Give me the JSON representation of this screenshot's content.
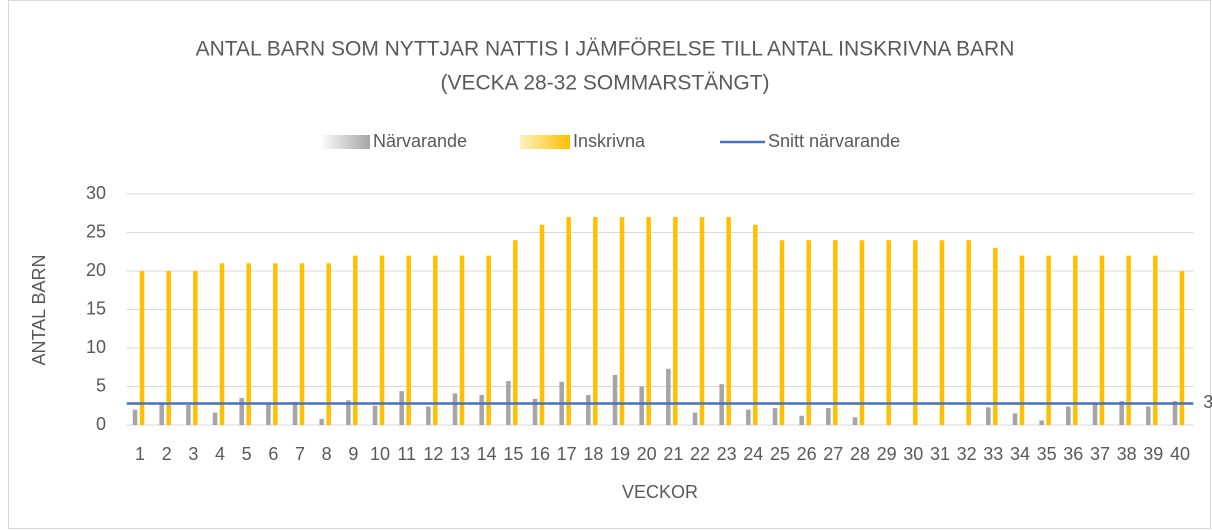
{
  "chart_data": {
    "type": "bar",
    "title": "ANTAL BARN SOM NYTTJAR NATTIS I JÄMFÖRELSE TILL ANTAL INSKRIVNA BARN",
    "subtitle": "(VECKA 28-32 SOMMARSTÄNGT)",
    "x_label": "VECKOR",
    "y_label": "ANTAL BARN",
    "categories": [
      "1",
      "2",
      "3",
      "4",
      "5",
      "6",
      "7",
      "8",
      "9",
      "10",
      "11",
      "12",
      "13",
      "14",
      "15",
      "16",
      "17",
      "18",
      "19",
      "20",
      "21",
      "22",
      "23",
      "24",
      "25",
      "26",
      "27",
      "28",
      "29",
      "30",
      "31",
      "32",
      "33",
      "34",
      "35",
      "36",
      "37",
      "38",
      "39",
      "40"
    ],
    "series": [
      {
        "name": "Närvarande",
        "color": "#a5a5a5",
        "type": "bar",
        "values": [
          2,
          2.7,
          2.6,
          1.6,
          3.5,
          2.7,
          3,
          0.8,
          3.2,
          2.5,
          4.4,
          2.4,
          4.1,
          3.9,
          5.7,
          3.4,
          5.6,
          3.9,
          6.5,
          5,
          7.3,
          1.6,
          5.3,
          2,
          2.2,
          1.2,
          2.2,
          1,
          0,
          0,
          0,
          0,
          2.3,
          1.5,
          0.6,
          2.4,
          2.7,
          3.1,
          2.4,
          3.1
        ]
      },
      {
        "name": "Inskrivna",
        "color": "#ffc000",
        "type": "bar",
        "values": [
          20,
          20,
          20,
          21,
          21,
          21,
          21,
          21,
          22,
          22,
          22,
          22,
          22,
          22,
          24,
          26,
          27,
          27,
          27,
          27,
          27,
          27,
          27,
          26,
          24,
          24,
          24,
          24,
          24,
          24,
          24,
          24,
          23,
          22,
          22,
          22,
          22,
          22,
          22,
          20
        ]
      },
      {
        "name": "Snitt närvarande",
        "color": "#4472c4",
        "type": "line",
        "values": [
          2.8,
          2.8,
          2.8,
          2.8,
          2.8,
          2.8,
          2.8,
          2.8,
          2.8,
          2.8,
          2.8,
          2.8,
          2.8,
          2.8,
          2.8,
          2.8,
          2.8,
          2.8,
          2.8,
          2.8,
          2.8,
          2.8,
          2.8,
          2.8,
          2.8,
          2.8,
          2.8,
          2.8,
          2.8,
          2.8,
          2.8,
          2.8,
          2.8,
          2.8,
          2.8,
          2.8,
          2.8,
          2.8,
          2.8,
          2.8
        ],
        "value_labels": [
          null,
          null,
          null,
          null,
          null,
          null,
          null,
          null,
          null,
          null,
          null,
          null,
          null,
          null,
          null,
          null,
          null,
          null,
          null,
          null,
          null,
          null,
          null,
          null,
          null,
          null,
          null,
          null,
          null,
          null,
          null,
          null,
          null,
          null,
          null,
          null,
          null,
          null,
          null,
          "3"
        ]
      }
    ],
    "ylim": [
      0,
      30
    ],
    "yticks": [
      0,
      5,
      10,
      15,
      20,
      25,
      30
    ],
    "grid": true,
    "legend": "top"
  }
}
